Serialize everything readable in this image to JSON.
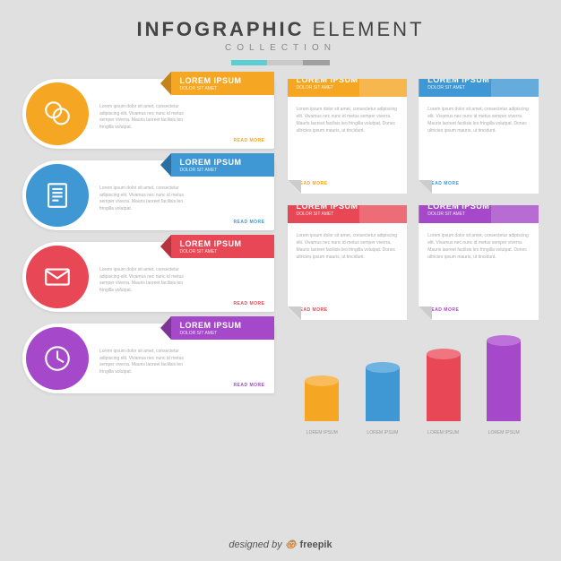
{
  "header": {
    "title_bold": "INFOGRAPHIC",
    "title_light": "ELEMENT",
    "subtitle": "COLLECTION",
    "progress_colors": [
      "#5bcfd4",
      "#c9c9c9",
      "#a0a0a0"
    ],
    "progress_widths": [
      40,
      40,
      30
    ]
  },
  "banners": [
    {
      "icon": "chat",
      "icon_bg": "#f5a623",
      "tab_bg": "#f5a623",
      "tab_fold": "#c4841a",
      "title": "LOREM IPSUM",
      "sub": "DOLOR SIT AMET",
      "more_color": "#f5a623",
      "text": "Lorem ipsum dolor sit amet, consectetur adipiscing elit. Vivamus nec nunc id metus semper viverra. Mauris laoreet facilisis leo fringilla volutpat.",
      "more": "READ MORE"
    },
    {
      "icon": "doc",
      "icon_bg": "#3f97d4",
      "tab_bg": "#3f97d4",
      "tab_fold": "#2d6fa0",
      "title": "LOREM IPSUM",
      "sub": "DOLOR SIT AMET",
      "more_color": "#3f97d4",
      "text": "Lorem ipsum dolor sit amet, consectetur adipiscing elit. Vivamus nec nunc id metus semper viverra. Mauris laoreet facilisis leo fringilla volutpat.",
      "more": "READ MORE"
    },
    {
      "icon": "mail",
      "icon_bg": "#e84855",
      "tab_bg": "#e84855",
      "tab_fold": "#b5333f",
      "title": "LOREM IPSUM",
      "sub": "DOLOR SIT AMET",
      "more_color": "#e84855",
      "text": "Lorem ipsum dolor sit amet, consectetur adipiscing elit. Vivamus nec nunc id metus semper viverra. Mauris laoreet facilisis leo fringilla volutpat.",
      "more": "READ MORE"
    },
    {
      "icon": "clock",
      "icon_bg": "#a548c9",
      "tab_bg": "#a548c9",
      "tab_fold": "#7c3497",
      "title": "LOREM IPSUM",
      "sub": "DOLOR SIT AMET",
      "more_color": "#a548c9",
      "text": "Lorem ipsum dolor sit amet, consectetur adipiscing elit. Vivamus nec nunc id metus semper viverra. Mauris laoreet facilisis leo fringilla volutpat.",
      "more": "READ MORE"
    }
  ],
  "cards": [
    {
      "tab_bg": "#f5a623",
      "title": "LOREM IPSUM",
      "sub": "DOLOR SIT AMET",
      "more_color": "#f5a623",
      "text": "Lorem ipsum dolor sit amet, consectetur adipiscing elit. Vivamus nec nunc id metus semper viverra. Mauris laoreet facilisis leo fringilla volutpat. Donec ultricies ipsum mauris, ut tincidunt.",
      "more": "READ MORE"
    },
    {
      "tab_bg": "#3f97d4",
      "title": "LOREM IPSUM",
      "sub": "DOLOR SIT AMET",
      "more_color": "#3f97d4",
      "text": "Lorem ipsum dolor sit amet, consectetur adipiscing elit. Vivamus nec nunc id metus semper viverra. Mauris laoreet facilisis leo fringilla volutpat. Donec ultricies ipsum mauris, ut tincidunt.",
      "more": "READ MORE"
    },
    {
      "tab_bg": "#e84855",
      "title": "LOREM IPSUM",
      "sub": "DOLOR SIT AMET",
      "more_color": "#e84855",
      "text": "Lorem ipsum dolor sit amet, consectetur adipiscing elit. Vivamus nec nunc id metus semper viverra. Mauris laoreet facilisis leo fringilla volutpat. Donec ultricies ipsum mauris, ut tincidunt.",
      "more": "READ MORE"
    },
    {
      "tab_bg": "#a548c9",
      "title": "LOREM IPSUM",
      "sub": "DOLOR SIT AMET",
      "more_color": "#a548c9",
      "text": "Lorem ipsum dolor sit amet, consectetur adipiscing elit. Vivamus nec nunc id metus semper viverra. Mauris laoreet facilisis leo fringilla volutpat. Donec ultricies ipsum mauris, ut tincidunt.",
      "more": "READ MORE"
    }
  ],
  "bars": [
    {
      "height": 45,
      "body": "#f5a623",
      "top": "#f8bc5a",
      "label": "LOREM IPSUM"
    },
    {
      "height": 60,
      "body": "#3f97d4",
      "top": "#6fb3e0",
      "label": "LOREM IPSUM"
    },
    {
      "height": 75,
      "body": "#e84855",
      "top": "#ef7681",
      "label": "LOREM IPSUM"
    },
    {
      "height": 90,
      "body": "#a548c9",
      "top": "#bc72d8",
      "label": "LOREM IPSUM"
    }
  ],
  "footer": {
    "prefix": "designed by ",
    "brand": "freepik"
  }
}
